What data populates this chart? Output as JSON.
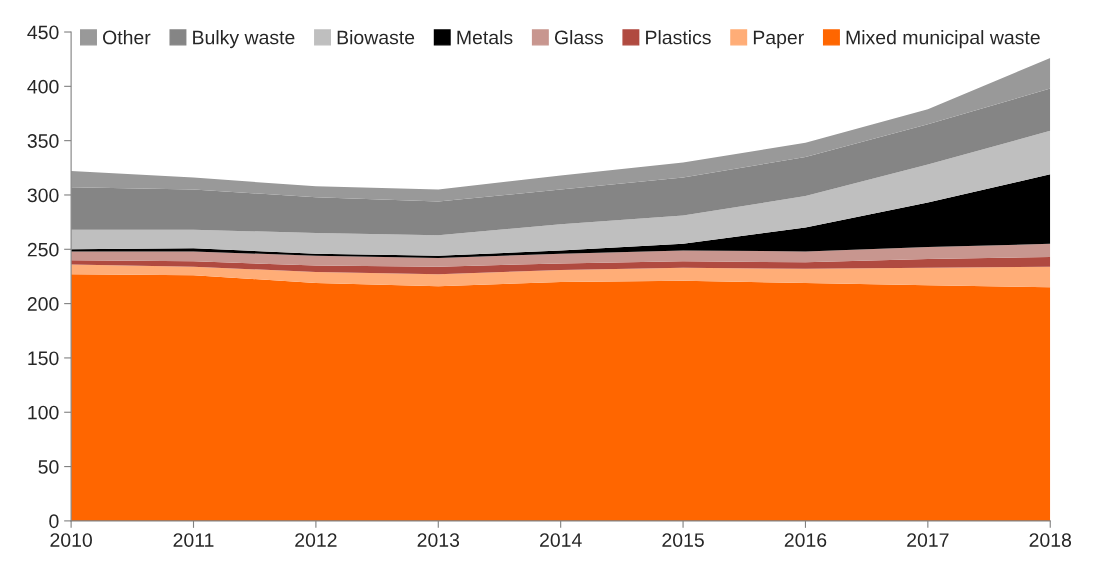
{
  "chart_data": {
    "type": "area",
    "stacked": true,
    "x": [
      2010,
      2011,
      2012,
      2013,
      2014,
      2015,
      2016,
      2017,
      2018
    ],
    "xlim": [
      2010,
      2018
    ],
    "xticks": [
      2010,
      2011,
      2012,
      2013,
      2014,
      2015,
      2016,
      2017,
      2018
    ],
    "ylim": [
      0,
      450
    ],
    "yticks": [
      0,
      50,
      100,
      150,
      200,
      250,
      300,
      350,
      400,
      450
    ],
    "grid": false,
    "legend": "top",
    "series": [
      {
        "name": "Mixed municipal waste",
        "color": "#ff6600",
        "values": [
          227,
          226,
          219,
          216,
          220,
          221,
          219,
          217,
          215
        ]
      },
      {
        "name": "Paper",
        "color": "#ffad77",
        "values": [
          9,
          8,
          10,
          11,
          11,
          12,
          13,
          16,
          19
        ]
      },
      {
        "name": "Plastics",
        "color": "#b04a40",
        "values": [
          4,
          5,
          6,
          7,
          6,
          6,
          6,
          8,
          9
        ]
      },
      {
        "name": "Glass",
        "color": "#c8968f",
        "values": [
          8,
          9,
          9,
          8,
          9,
          10,
          10,
          11,
          12
        ]
      },
      {
        "name": "Metals",
        "color": "#000000",
        "values": [
          2,
          3,
          2,
          2,
          3,
          6,
          22,
          41,
          64
        ]
      },
      {
        "name": "Biowaste",
        "color": "#bfbfbf",
        "values": [
          18,
          17,
          19,
          19,
          24,
          26,
          29,
          35,
          40
        ]
      },
      {
        "name": "Bulky waste",
        "color": "#858585",
        "values": [
          39,
          37,
          33,
          31,
          32,
          35,
          36,
          37,
          39
        ]
      },
      {
        "name": "Other",
        "color": "#999999",
        "values": [
          15,
          11,
          10,
          11,
          13,
          14,
          13,
          14,
          28
        ]
      }
    ]
  }
}
